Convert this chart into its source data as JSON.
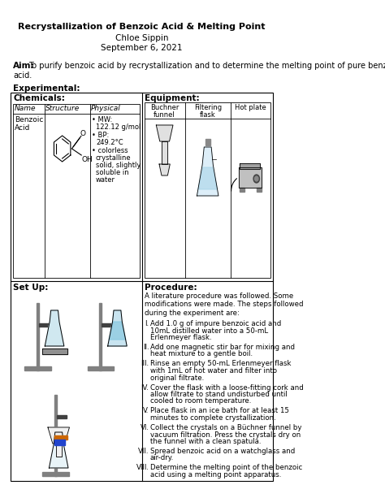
{
  "title": "Recrystallization of Benzoic Acid & Melting Point",
  "author": "Chloe Sippin",
  "date": "September 6, 2021",
  "aim_label": "Aim:",
  "aim_text1": "To purify benzoic acid by recrystallization and to determine the melting point of pure benzoic",
  "aim_text2": "acid.",
  "experimental_label": "Experimental:",
  "chemicals_label": "Chemicals:",
  "equipment_label": "Equipment:",
  "chem_col1_header": "Name",
  "chem_col2_header": "Structure",
  "chem_col3_header": "Physical",
  "equip_col1": "Buchner\nfunnel",
  "equip_col2": "Filtering\nflask",
  "equip_col3": "Hot plate",
  "setup_label": "Set Up:",
  "procedure_label": "Procedure:",
  "procedure_intro": "A literature procedure was followed. Some\nmodifications were made. The steps followed\nduring the experiment are:",
  "procedure_steps": [
    "Add 1.0 g of impure benzoic acid and\n10mL distilled water into a 50-mL\nErlenmeyer flask.",
    "Add one magnetic stir bar for mixing and\nheat mixture to a gentle boil.",
    "Rinse an empty 50-mL Erlenmeyer flask\nwith 1mL of hot water and filter into\noriginal filtrate.",
    "Cover the flask with a loose-fitting cork and\nallow filtrate to stand undisturbed until\ncooled to room temperature.",
    "Place flask in an ice bath for at least 15\nminutes to complete crystallization.",
    "Collect the crystals on a Büchner funnel by\nvacuum filtration. Press the crystals dry on\nthe funnel with a clean spatula.",
    "Spread benzoic acid on a watchglass and\nair-dry.",
    "Determine the melting point of the benzoic\nacid using a melting point apparatus."
  ],
  "procedure_roman": [
    "I.",
    "II.",
    "III.",
    "IV.",
    "V.",
    "VI.",
    "VII.",
    "VIII."
  ],
  "bg_color": "#ffffff",
  "text_color": "#000000"
}
